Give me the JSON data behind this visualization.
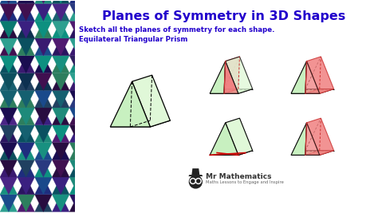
{
  "title": "Planes of Symmetry in 3D Shapes",
  "subtitle1": "Sketch all the planes of symmetry for each shape.",
  "subtitle2": "Equilateral Triangular Prism",
  "title_color": "#2200cc",
  "subtitle_color": "#2200cc",
  "bg_color": "#ffffff",
  "prism_fill": "#c8f0c0",
  "prism_fill2": "#e0f8d8",
  "prism_edge": "#000000",
  "plane_red": "#f08080",
  "logo_text_color": "#333333",
  "logo_sub_color": "#666666",
  "mosaic_colors": [
    "#1e8a7a",
    "#156070",
    "#0d4f5e",
    "#2d7e5e",
    "#1a4a8b",
    "#2a3a80",
    "#1e2d7e",
    "#3a2080",
    "#2a1560",
    "#1a0d50",
    "#4a2585",
    "#3a1a70",
    "#0d9080",
    "#0a7a70",
    "#189080",
    "#2ea090",
    "#0a5060",
    "#1a6070",
    "#0d3050",
    "#204060",
    "#302060",
    "#401050",
    "#501a70",
    "#280d40"
  ]
}
